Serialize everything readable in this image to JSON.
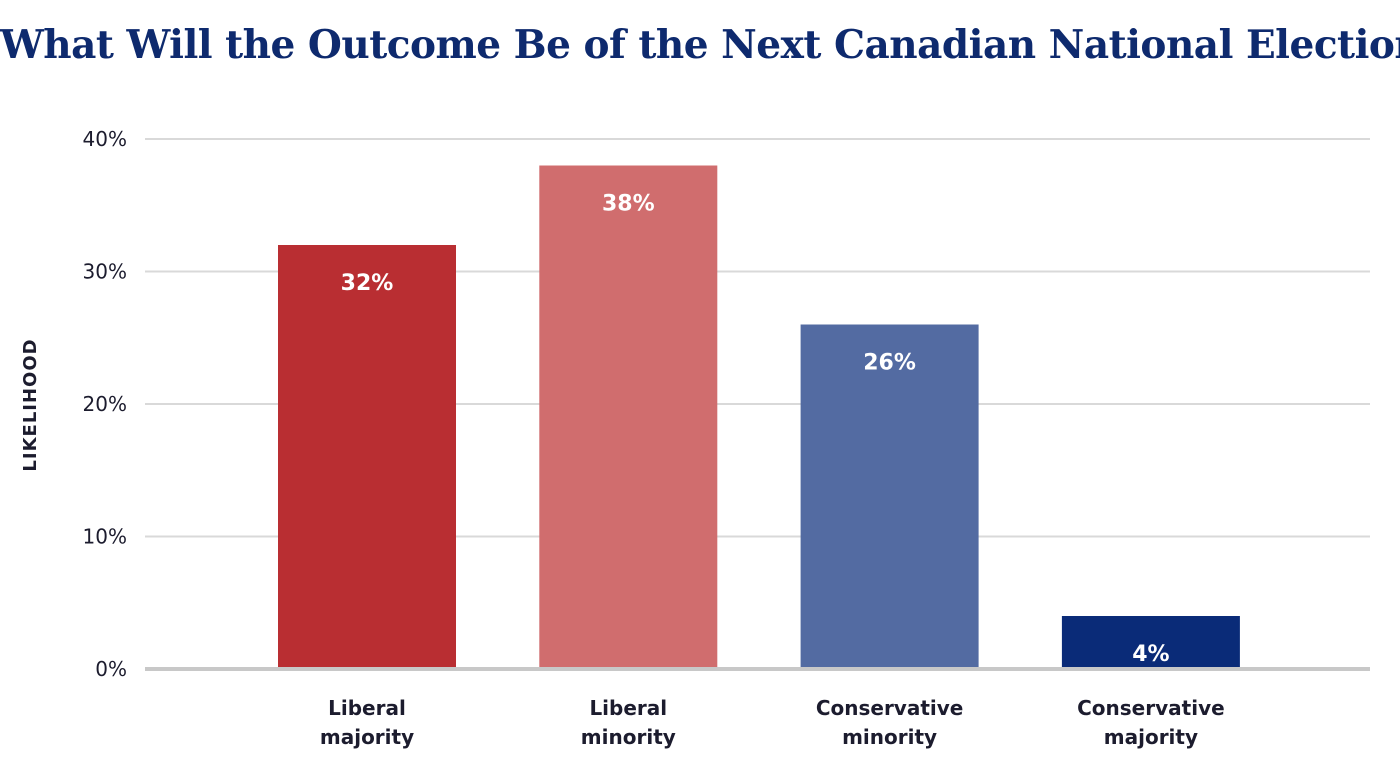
{
  "chart_data": {
    "type": "bar",
    "title": "What Will the Outcome Be of the Next Canadian National Election?",
    "xlabel": "",
    "ylabel": "LIKELIHOOD",
    "ylim": [
      0,
      40
    ],
    "yticks": [
      0,
      10,
      20,
      30,
      40
    ],
    "ytick_labels": [
      "0%",
      "10%",
      "20%",
      "30%",
      "40%"
    ],
    "grid": true,
    "categories": [
      [
        "Liberal",
        "majority"
      ],
      [
        "Liberal",
        "minority"
      ],
      [
        "Conservative",
        "minority"
      ],
      [
        "Conservative",
        "majority"
      ]
    ],
    "values": [
      32,
      38,
      26,
      4
    ],
    "data_labels": [
      "32%",
      "38%",
      "26%",
      "4%"
    ],
    "colors": [
      "#b92e32",
      "#d06d6e",
      "#536ba2",
      "#0a2b78"
    ],
    "grid_color": "#d9d9d9",
    "baseline_color": "#c8c8c8"
  }
}
